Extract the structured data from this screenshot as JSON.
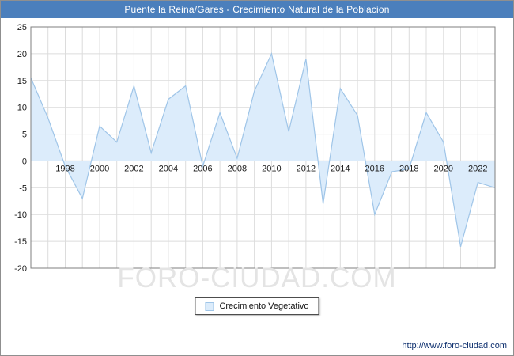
{
  "window": {
    "title": "Puente la Reina/Gares - Crecimiento Natural de la Poblacion"
  },
  "watermark": "FORO-CIUDAD.COM",
  "legend": {
    "label": "Crecimiento Vegetativo"
  },
  "footer": {
    "url": "http://www.foro-ciudad.com"
  },
  "chart_data": {
    "type": "area",
    "title": "Puente la Reina/Gares - Crecimiento Natural de la Poblacion",
    "series_name": "Crecimiento Vegetativo",
    "x": [
      1996,
      1997,
      1998,
      1999,
      2000,
      2001,
      2002,
      2003,
      2004,
      2005,
      2006,
      2007,
      2008,
      2009,
      2010,
      2011,
      2012,
      2013,
      2014,
      2015,
      2016,
      2017,
      2018,
      2019,
      2020,
      2021,
      2022,
      2023
    ],
    "values": [
      15.5,
      8,
      -1,
      -7,
      6.5,
      3.5,
      14,
      1.5,
      11.5,
      14,
      -1,
      9,
      0.5,
      13,
      20,
      5.5,
      19,
      -8,
      13.5,
      8.5,
      -10,
      -2,
      -1.5,
      9,
      3.5,
      -16,
      -4,
      -5
    ],
    "ylim": [
      -20,
      25
    ],
    "yticks": [
      25,
      20,
      15,
      10,
      5,
      0,
      -5,
      -10,
      -15,
      -20
    ],
    "xticks": [
      1998,
      2000,
      2002,
      2004,
      2006,
      2008,
      2010,
      2012,
      2014,
      2016,
      2018,
      2020,
      2022
    ],
    "grid": true,
    "legend_position": "bottom",
    "fill_color": "#dcecfb",
    "line_color": "#9fc5e8",
    "grid_color": "#dcdcdc",
    "zero_line_color": "#c4c4c4",
    "plot_border_color": "#7f7f7f",
    "titlebar_color": "#4b7fbc"
  }
}
